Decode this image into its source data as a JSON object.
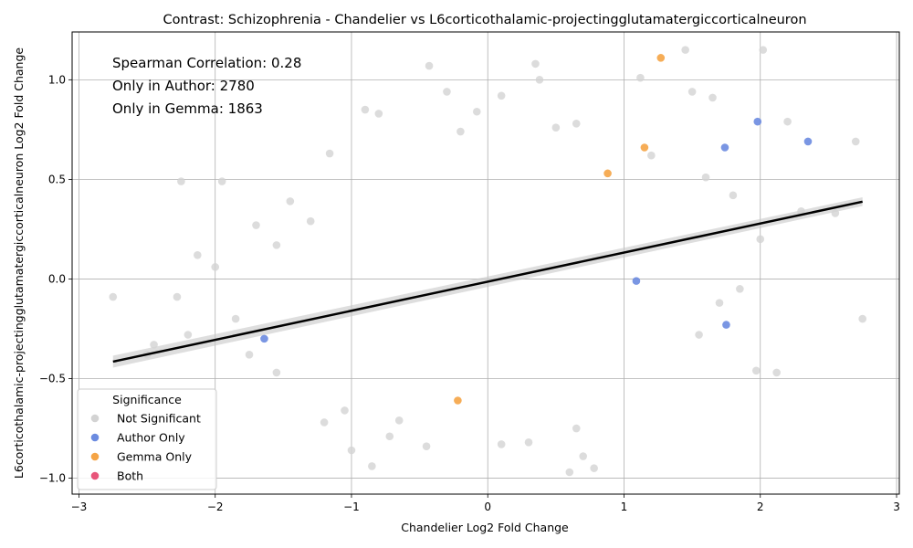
{
  "chart_data": {
    "type": "scatter",
    "title": "Contrast: Schizophrenia - Chandelier vs L6corticothalamic-projectingglutamatergiccorticalneuron",
    "xlabel": "Chandelier Log2 Fold Change",
    "ylabel": "L6corticothalamic-projectingglutamatergiccorticalneuron Log2 Fold Change",
    "xlim": [
      -3.05,
      3.02
    ],
    "ylim": [
      -1.08,
      1.24
    ],
    "xticks": [
      -3,
      -2,
      -1,
      0,
      1,
      2,
      3
    ],
    "yticks": [
      -1.0,
      -0.5,
      0.0,
      0.5,
      1.0
    ],
    "xtick_labels": [
      "−3",
      "−2",
      "−1",
      "0",
      "1",
      "2",
      "3"
    ],
    "ytick_labels": [
      "−1.0",
      "−0.5",
      "0.0",
      "0.5",
      "1.0"
    ],
    "grid": true,
    "annotations": [
      "Spearman Correlation: 0.28",
      "Only in Author: 2780",
      "Only in Gemma: 1863"
    ],
    "regression": {
      "x": [
        -2.75,
        2.75
      ],
      "y": [
        -0.415,
        0.388
      ],
      "ci_half_width": [
        0.03,
        0.022
      ]
    },
    "legend": {
      "title": "Significance",
      "placement": "lower-left",
      "entries": [
        {
          "label": "Not Significant",
          "color": "#d3d3d3"
        },
        {
          "label": "Author Only",
          "color": "#6b8be0"
        },
        {
          "label": "Gemma Only",
          "color": "#f5a445"
        },
        {
          "label": "Both",
          "color": "#e8557a"
        }
      ]
    },
    "series": [
      {
        "name": "Author Only",
        "color": "#6b8be0",
        "points": [
          [
            -1.64,
            -0.3
          ],
          [
            1.09,
            -0.01
          ],
          [
            1.74,
            0.66
          ],
          [
            1.75,
            -0.23
          ],
          [
            1.98,
            0.79
          ],
          [
            2.35,
            0.69
          ]
        ]
      },
      {
        "name": "Gemma Only",
        "color": "#f5a445",
        "points": [
          [
            1.27,
            1.11
          ],
          [
            1.15,
            0.66
          ],
          [
            0.88,
            0.53
          ],
          [
            -0.22,
            -0.61
          ]
        ]
      },
      {
        "name": "Not Significant",
        "color": "#d3d3d3",
        "points": [
          [
            -2.75,
            -0.09
          ],
          [
            -2.28,
            -0.09
          ],
          [
            -2.25,
            0.49
          ],
          [
            -2.13,
            0.12
          ],
          [
            -1.95,
            0.49
          ],
          [
            -2.0,
            0.06
          ],
          [
            -2.2,
            -0.28
          ],
          [
            -1.7,
            0.27
          ],
          [
            -1.55,
            0.17
          ],
          [
            -1.3,
            0.29
          ],
          [
            -1.16,
            0.63
          ],
          [
            -1.2,
            -0.72
          ],
          [
            -0.9,
            0.85
          ],
          [
            -0.8,
            0.83
          ],
          [
            -0.43,
            1.07
          ],
          [
            -0.3,
            0.94
          ],
          [
            0.35,
            1.08
          ],
          [
            0.38,
            1.0
          ],
          [
            1.45,
            1.15
          ],
          [
            2.02,
            1.15
          ],
          [
            2.2,
            0.79
          ],
          [
            2.7,
            0.69
          ],
          [
            2.75,
            -0.2
          ],
          [
            2.12,
            -0.47
          ],
          [
            1.97,
            -0.46
          ],
          [
            0.6,
            -0.97
          ],
          [
            0.78,
            -0.95
          ],
          [
            -0.85,
            -0.94
          ],
          [
            -1.0,
            -0.86
          ],
          [
            -0.45,
            -0.84
          ],
          [
            -2.5,
            -0.38
          ],
          [
            -2.45,
            -0.33
          ],
          [
            -1.85,
            -0.2
          ],
          [
            -1.45,
            0.39
          ],
          [
            2.3,
            0.34
          ],
          [
            2.55,
            0.33
          ],
          [
            1.6,
            0.51
          ],
          [
            1.2,
            0.62
          ],
          [
            1.5,
            0.94
          ],
          [
            1.65,
            0.91
          ],
          [
            1.12,
            1.01
          ],
          [
            0.5,
            0.76
          ],
          [
            0.1,
            0.92
          ],
          [
            -0.08,
            0.84
          ],
          [
            -0.2,
            0.74
          ],
          [
            0.65,
            0.78
          ],
          [
            0.7,
            -0.89
          ],
          [
            0.65,
            -0.75
          ],
          [
            0.3,
            -0.82
          ],
          [
            0.1,
            -0.83
          ],
          [
            -0.65,
            -0.71
          ],
          [
            -0.72,
            -0.79
          ],
          [
            -1.05,
            -0.66
          ],
          [
            -1.55,
            -0.47
          ],
          [
            -1.75,
            -0.38
          ],
          [
            1.8,
            0.42
          ],
          [
            2.0,
            0.2
          ],
          [
            1.85,
            -0.05
          ],
          [
            1.7,
            -0.12
          ],
          [
            1.55,
            -0.28
          ]
        ]
      }
    ]
  }
}
